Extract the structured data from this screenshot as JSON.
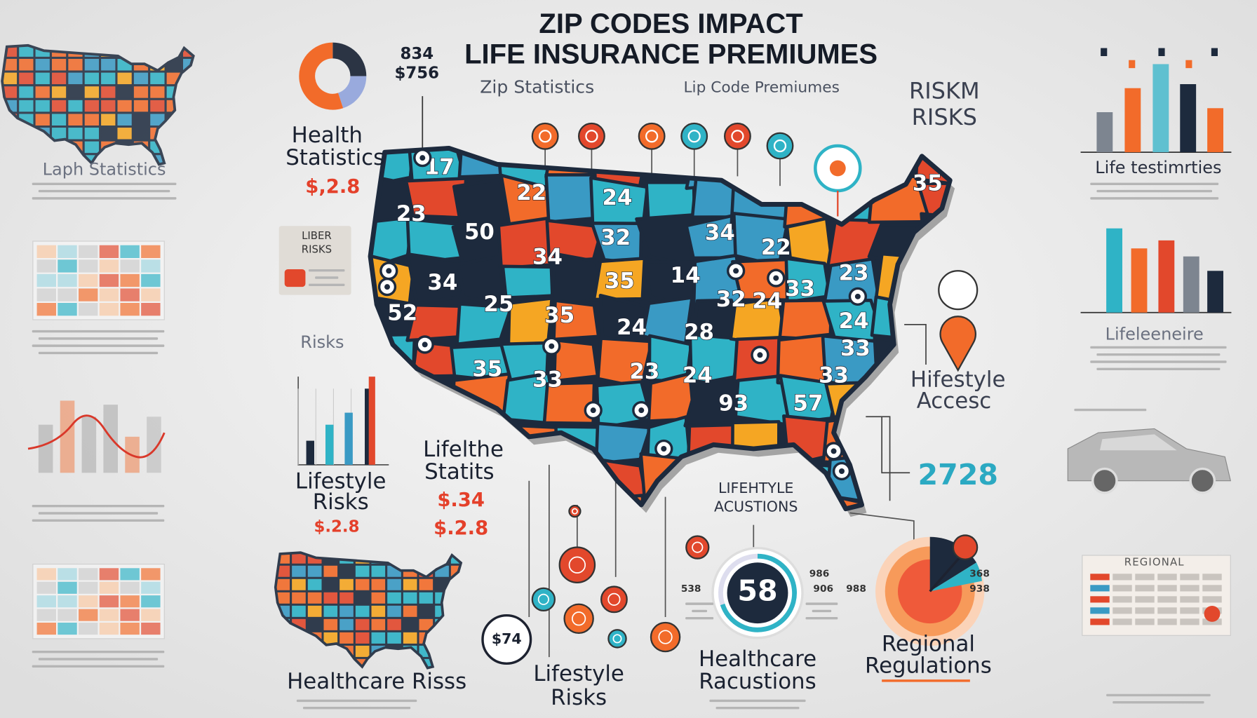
{
  "header": {
    "title": [
      "ZIP CODES IMPACT",
      "LIFE INSURANCE PREMIUMES"
    ],
    "figures": [
      "834",
      "$756"
    ],
    "subtitles": [
      "Zip Statistics",
      "Lip Code Premiumes"
    ]
  },
  "left_panel": {
    "map_caption": "Laph Statistics",
    "risks": "Risks",
    "box_label": [
      "LIBER",
      "RISKS"
    ]
  },
  "callouts": {
    "health_statistics": {
      "title": [
        "Health",
        "Statistics"
      ],
      "value": "$,2.8"
    },
    "lifestyle_risks": {
      "title": [
        "Lifestyle",
        "Risks"
      ],
      "value": "$.2.8"
    },
    "lifelthe_statits": {
      "title": [
        "Lifelthe",
        "Statits"
      ],
      "values": [
        "$.34",
        "$.2.8"
      ]
    },
    "riskm_risks": {
      "title": [
        "RISKM",
        "RISKS"
      ]
    },
    "hifestyle_access": {
      "title": [
        "Hifestyle",
        "Accesc"
      ],
      "value": "2728"
    },
    "lifehtyle_acustions": {
      "title": [
        "LIFEHTYLE",
        "ACUSTIONS"
      ]
    },
    "gauge": {
      "value": "58",
      "side_values": [
        "538",
        "986",
        "906",
        "988"
      ]
    },
    "regional_regulations": {
      "title": [
        "Regional",
        "Regulations"
      ],
      "side_values": [
        "368",
        "938"
      ]
    },
    "healthcare_racustions": {
      "title": [
        "Healthcare",
        "Racustions"
      ]
    },
    "lifestyle_risks_bottom": {
      "title": [
        "Lifestyle",
        "Risks"
      ]
    },
    "healthcare_risss": {
      "title": "Healthcare Risss"
    },
    "pin_value": "$74"
  },
  "right_panel": {
    "chart_captions": [
      "Life testimrties",
      "Lifeleeneire"
    ],
    "table_title": "REGIONAL"
  },
  "map": {
    "labels": [
      "23",
      "22",
      "24",
      "32",
      "34",
      "50",
      "34",
      "25",
      "35",
      "35",
      "14",
      "34",
      "24",
      "28",
      "35",
      "33",
      "23",
      "24",
      "32",
      "24",
      "33",
      "23",
      "22",
      "24",
      "33",
      "33",
      "93",
      "57",
      "35",
      "52",
      "17"
    ]
  }
}
